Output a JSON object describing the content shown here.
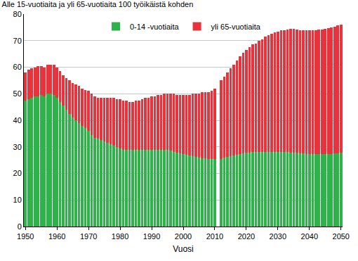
{
  "chart_data": {
    "type": "bar",
    "title": "Alle 15-vuotiaita ja yli 65-vuotiaita 100 työikäistä kohden",
    "x_label": "Vuosi",
    "x": [
      1950,
      1951,
      1952,
      1953,
      1954,
      1955,
      1956,
      1957,
      1958,
      1959,
      1960,
      1961,
      1962,
      1963,
      1964,
      1965,
      1966,
      1967,
      1968,
      1969,
      1970,
      1971,
      1972,
      1973,
      1974,
      1975,
      1976,
      1977,
      1978,
      1979,
      1980,
      1981,
      1982,
      1983,
      1984,
      1985,
      1986,
      1987,
      1988,
      1989,
      1990,
      1991,
      1992,
      1993,
      1994,
      1995,
      1996,
      1997,
      1998,
      1999,
      2000,
      2001,
      2002,
      2003,
      2004,
      2005,
      2006,
      2007,
      2008,
      2009,
      2010,
      2011,
      2012,
      2013,
      2014,
      2015,
      2016,
      2017,
      2018,
      2019,
      2020,
      2021,
      2022,
      2023,
      2024,
      2025,
      2026,
      2027,
      2028,
      2029,
      2030,
      2031,
      2032,
      2033,
      2034,
      2035,
      2036,
      2037,
      2038,
      2039,
      2040,
      2041,
      2042,
      2043,
      2044,
      2045,
      2046,
      2047,
      2048,
      2049,
      2050
    ],
    "series": [
      {
        "name": "0-14 -vuotiaita",
        "color": "#2db34a",
        "values": [
          47.5,
          48,
          48.5,
          49,
          49,
          49.5,
          49,
          50,
          50,
          49.5,
          48.5,
          47,
          45.5,
          44,
          42.5,
          41,
          40,
          39,
          38,
          37,
          36,
          34.5,
          33.5,
          33,
          32.5,
          32,
          31.5,
          31,
          30.5,
          30,
          29.5,
          29,
          29,
          29,
          28.8,
          28.8,
          28.8,
          28.8,
          29,
          29,
          29,
          28.8,
          28.8,
          28.8,
          28.8,
          28.8,
          28.5,
          28,
          27.8,
          27.5,
          27.2,
          27,
          26.8,
          26.5,
          26.3,
          26,
          25.8,
          25.6,
          25.5,
          25.5,
          25.5,
          null,
          25.5,
          26,
          26.2,
          26.5,
          26.8,
          27,
          27.3,
          27.5,
          27.7,
          27.8,
          28,
          28,
          28.2,
          28.2,
          28.2,
          28.2,
          28.2,
          28.2,
          28.2,
          28.1,
          28,
          28,
          27.9,
          27.8,
          27.7,
          27.6,
          27.5,
          27.4,
          27.3,
          27.2,
          27.2,
          27.2,
          27.2,
          27.2,
          27.3,
          27.4,
          27.5,
          27.6,
          27.7
        ]
      },
      {
        "name": "yli 65-vuotiaita",
        "color": "#e8323c",
        "values": [
          10.5,
          11,
          11,
          11,
          11.5,
          11,
          11,
          11,
          11,
          11.5,
          11.5,
          11.5,
          11.5,
          12,
          12.5,
          13,
          13.5,
          14,
          14,
          14.5,
          15,
          15.5,
          15.5,
          15.5,
          16,
          16.5,
          17,
          17.5,
          18,
          18,
          18.5,
          18.5,
          18.5,
          18,
          18.2,
          18.7,
          18.7,
          19.2,
          19.5,
          19.5,
          20,
          20.2,
          20.7,
          20.7,
          21.2,
          21.2,
          21.5,
          22,
          21.7,
          22,
          22.3,
          22.5,
          22.7,
          23.5,
          23.7,
          24,
          24.7,
          24.9,
          25,
          25.5,
          26.5,
          null,
          29.5,
          30.5,
          31.8,
          33,
          34.2,
          35.5,
          36.7,
          38,
          38.8,
          39.7,
          40.5,
          41,
          41.8,
          42.3,
          43.3,
          43.8,
          44.3,
          44.8,
          45.3,
          45.7,
          46,
          46.3,
          46.6,
          46.7,
          46.6,
          46.4,
          46.5,
          46.4,
          46.5,
          46.7,
          46.8,
          47,
          47.1,
          47.3,
          47.5,
          47.6,
          47.8,
          48.1,
          48.3
        ]
      }
    ],
    "xlim": [
      1949.5,
      2050.5
    ],
    "xticks": [
      1950,
      1960,
      1970,
      1980,
      1990,
      2000,
      2010,
      2020,
      2030,
      2040,
      2050
    ],
    "ylim": [
      0,
      80
    ],
    "yticks": [
      0,
      10,
      20,
      30,
      40,
      50,
      60,
      70,
      80
    ],
    "grid": true,
    "stacked": true,
    "legend": "top"
  }
}
